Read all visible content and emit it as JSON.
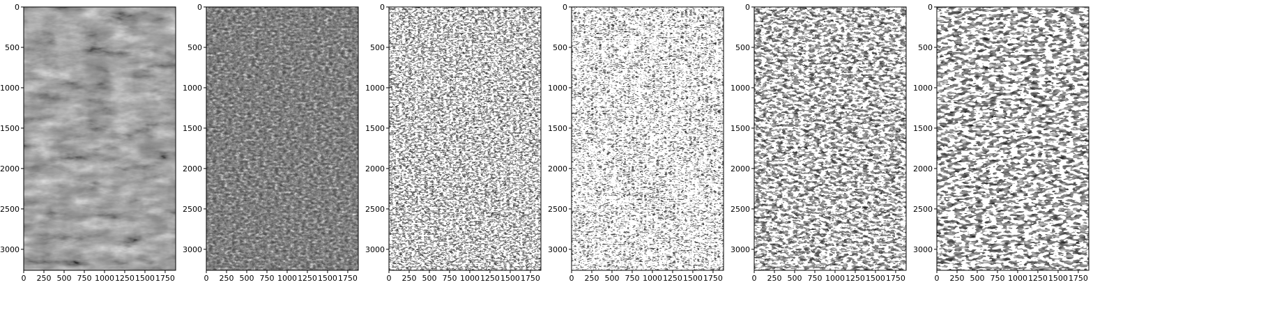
{
  "figure": {
    "panels": [
      {
        "style": "grayscale-photo",
        "content": "rock-texture-original"
      },
      {
        "style": "edge-map",
        "content": "rock-texture-edges"
      },
      {
        "style": "binary-fine",
        "content": "rock-texture-threshold-1"
      },
      {
        "style": "binary-medium",
        "content": "rock-texture-threshold-2"
      },
      {
        "style": "binary-coarse",
        "content": "rock-texture-threshold-3"
      },
      {
        "style": "binary-bold",
        "content": "rock-texture-threshold-4"
      }
    ],
    "x_ticks": [
      "0",
      "250",
      "500",
      "750",
      "1000",
      "1250",
      "1500",
      "1750"
    ],
    "x_tick_values": [
      0,
      250,
      500,
      750,
      1000,
      1250,
      1500,
      1750
    ],
    "y_ticks": [
      "0",
      "500",
      "1000",
      "1500",
      "2000",
      "2500",
      "3000"
    ],
    "y_tick_values": [
      0,
      500,
      1000,
      1500,
      2000,
      2500,
      3000
    ],
    "x_range": [
      0,
      1880
    ],
    "y_range": [
      0,
      3260
    ],
    "colors": {
      "background": "#ffffff",
      "axis": "#000000"
    }
  }
}
